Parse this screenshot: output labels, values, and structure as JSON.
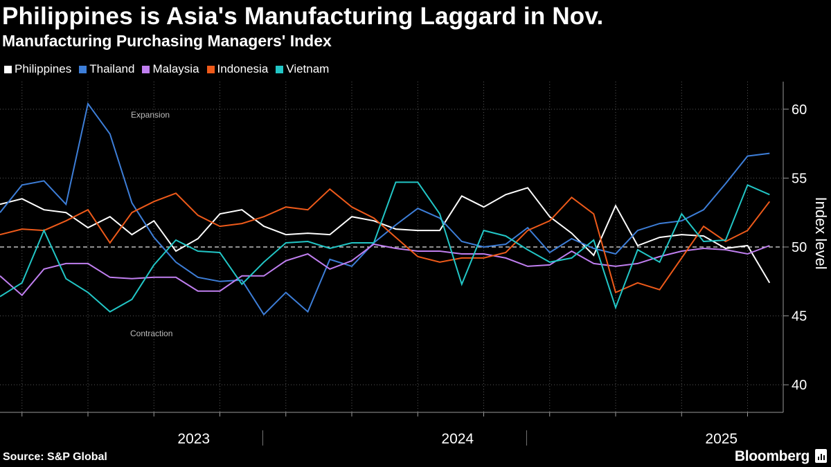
{
  "header": {
    "title": "Philippines is Asia's Manufacturing Laggard in Nov.",
    "subtitle": "Manufacturing Purchasing Managers' Index"
  },
  "footer": {
    "source": "Source: S&P Global",
    "brand": "Bloomberg"
  },
  "chart_data": {
    "type": "line",
    "title": "Philippines is Asia's Manufacturing Laggard in Nov.",
    "subtitle": "Manufacturing Purchasing Managers' Index",
    "ylabel": "Index level",
    "xlabel": "",
    "ylim": [
      38,
      62
    ],
    "yticks": [
      40,
      45,
      50,
      55,
      60
    ],
    "reference_line": 50,
    "annotations": [
      "Expansion",
      "Contraction"
    ],
    "x_start": "2022-09",
    "x_end": "2025-11",
    "year_labels": [
      "2023",
      "2024",
      "2025"
    ],
    "legend_position": "top-left",
    "series": [
      {
        "name": "Philippines",
        "color": "#ffffff",
        "values": [
          53.1,
          53.5,
          52.7,
          52.5,
          51.4,
          52.2,
          50.9,
          51.9,
          49.7,
          50.6,
          52.4,
          52.7,
          51.5,
          50.9,
          51.0,
          50.9,
          52.2,
          51.9,
          51.3,
          51.2,
          51.2,
          53.7,
          52.9,
          53.8,
          54.3,
          52.2,
          51.0,
          49.4,
          53.0,
          50.1,
          50.7,
          50.9,
          50.8,
          49.9,
          50.1,
          47.4
        ]
      },
      {
        "name": "Thailand",
        "color": "#3d7ed8",
        "values": [
          52.5,
          54.5,
          54.8,
          53.1,
          60.4,
          58.2,
          53.2,
          50.7,
          48.9,
          47.8,
          47.5,
          47.6,
          45.1,
          46.7,
          45.3,
          49.1,
          48.6,
          50.3,
          51.6,
          52.8,
          52.1,
          50.4,
          50.0,
          50.2,
          51.4,
          49.6,
          50.6,
          49.9,
          49.5,
          51.2,
          51.7,
          51.9,
          52.7,
          54.6,
          56.6,
          56.8
        ]
      },
      {
        "name": "Malaysia",
        "color": "#c07ff0",
        "values": [
          47.9,
          46.5,
          48.4,
          48.8,
          48.8,
          47.8,
          47.7,
          47.8,
          47.8,
          46.8,
          46.8,
          47.9,
          47.9,
          49.0,
          49.5,
          48.4,
          49.0,
          50.2,
          49.9,
          49.7,
          49.7,
          49.5,
          49.5,
          49.2,
          48.6,
          48.7,
          49.7,
          48.8,
          48.6,
          48.8,
          49.3,
          49.7,
          49.9,
          49.8,
          49.5,
          50.1
        ]
      },
      {
        "name": "Indonesia",
        "color": "#ee5a1a",
        "values": [
          50.9,
          51.3,
          51.2,
          51.9,
          52.7,
          50.3,
          52.5,
          53.3,
          53.9,
          52.3,
          51.5,
          51.7,
          52.2,
          52.9,
          52.7,
          54.2,
          52.9,
          52.1,
          50.7,
          49.3,
          48.9,
          49.2,
          49.2,
          49.6,
          51.2,
          51.9,
          53.6,
          52.4,
          46.7,
          47.4,
          46.9,
          49.2,
          51.5,
          50.4,
          51.2,
          53.3
        ]
      },
      {
        "name": "Vietnam",
        "color": "#22c6c6",
        "values": [
          46.4,
          47.4,
          51.2,
          47.7,
          46.7,
          45.3,
          46.2,
          48.7,
          50.5,
          49.7,
          49.6,
          47.3,
          48.9,
          50.3,
          50.4,
          49.9,
          50.3,
          50.3,
          54.7,
          54.7,
          52.4,
          47.3,
          51.2,
          50.8,
          49.8,
          48.9,
          49.2,
          50.5,
          45.6,
          49.8,
          48.9,
          52.4,
          50.4,
          50.5,
          54.5,
          53.8
        ]
      }
    ]
  }
}
